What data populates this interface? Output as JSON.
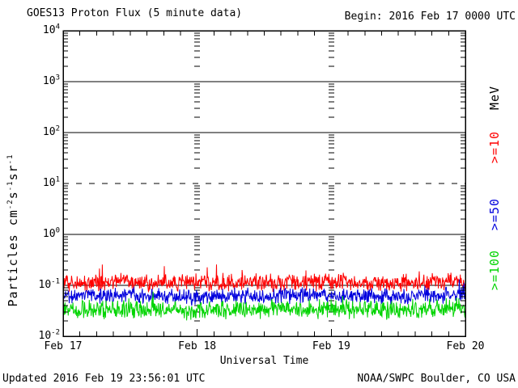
{
  "header": {
    "title": "GOES13 Proton Flux (5 minute data)",
    "begin": "Begin: 2016 Feb 17 0000 UTC"
  },
  "footer": {
    "updated": "Updated 2016 Feb 19 23:56:01 UTC",
    "attribution": "NOAA/SWPC Boulder, CO USA"
  },
  "chart_data": {
    "type": "line",
    "title": "GOES13 Proton Flux (5 minute data)",
    "xlabel": "Universal Time",
    "ylabel": "Particles cm⁻²s⁻¹sr⁻¹",
    "ylabel_parts": [
      [
        "text",
        "Particles cm"
      ],
      [
        "sup",
        "-2"
      ],
      [
        "text",
        "s"
      ],
      [
        "sup",
        "-1"
      ],
      [
        "text",
        "sr"
      ],
      [
        "sup",
        "-1"
      ]
    ],
    "x_days": 3,
    "x_ticks": [
      {
        "day": 0,
        "label": "Feb 17"
      },
      {
        "day": 1,
        "label": "Feb 18"
      },
      {
        "day": 2,
        "label": "Feb 19"
      },
      {
        "day": 3,
        "label": "Feb 20"
      }
    ],
    "x_minor_tick_hours": 3,
    "y_axis": {
      "scale": "log",
      "log_min": -2,
      "log_max": 4,
      "ticks": [
        {
          "log": 4,
          "base": "10",
          "exp": "4",
          "text": "10⁴"
        },
        {
          "log": 3,
          "base": "10",
          "exp": "3",
          "text": "10³"
        },
        {
          "log": 2,
          "base": "10",
          "exp": "2",
          "text": "10²"
        },
        {
          "log": 1,
          "base": "10",
          "exp": "1",
          "text": "10¹"
        },
        {
          "log": 0,
          "base": "10",
          "exp": "0",
          "text": "10⁰"
        },
        {
          "log": -1,
          "base": "10",
          "exp": "-1",
          "text": "10⁻¹"
        },
        {
          "log": -2,
          "base": "10",
          "exp": "-2",
          "text": "10⁻²"
        }
      ]
    },
    "reference_lines": [
      {
        "log": 3,
        "style": "solid"
      },
      {
        "log": 2,
        "style": "solid"
      },
      {
        "log": 1,
        "style": "dashed"
      },
      {
        "log": 0,
        "style": "solid"
      },
      {
        "log": -1,
        "style": "solid"
      }
    ],
    "legend": {
      "entries": [
        {
          "label": "MeV",
          "color": "#000000"
        },
        {
          "label": ">=10",
          "color": "#ff0000"
        },
        {
          "label": ">=50",
          "color": "#0000dd"
        },
        {
          "label": ">=100",
          "color": "#00d400"
        }
      ]
    },
    "points_per_series": 864,
    "seed": 20160219,
    "series": [
      {
        "name": "gte10",
        "label": ">=10 MeV",
        "color": "#ff0000",
        "anchors_flux": [
          0.115,
          0.11,
          0.12,
          0.113,
          0.111,
          0.117,
          0.112,
          0.114,
          0.119,
          0.113,
          0.11,
          0.116,
          0.124
        ],
        "noise": {
          "range_decades": 0.2,
          "spike_prob": 0.03,
          "spike_decades": 0.25
        },
        "clamp": [
          0.068,
          0.33
        ]
      },
      {
        "name": "gte50",
        "label": ">=50 MeV",
        "color": "#0000dd",
        "anchors_flux": [
          0.062,
          0.06,
          0.064,
          0.061,
          0.059,
          0.062,
          0.06,
          0.063,
          0.064,
          0.061,
          0.06,
          0.064,
          0.067
        ],
        "noise": {
          "range_decades": 0.18,
          "spike_prob": 0.02,
          "spike_decades": 0.2
        },
        "clamp": [
          0.04,
          0.135
        ]
      },
      {
        "name": "gte100",
        "label": ">=100 MeV",
        "color": "#00d400",
        "anchors_flux": [
          0.034,
          0.032,
          0.035,
          0.033,
          0.032,
          0.034,
          0.033,
          0.035,
          0.036,
          0.034,
          0.033,
          0.035,
          0.036
        ],
        "noise": {
          "range_decades": 0.22,
          "spike_prob": 0.02,
          "spike_decades": 0.18
        },
        "clamp": [
          0.017,
          0.08
        ]
      }
    ]
  }
}
